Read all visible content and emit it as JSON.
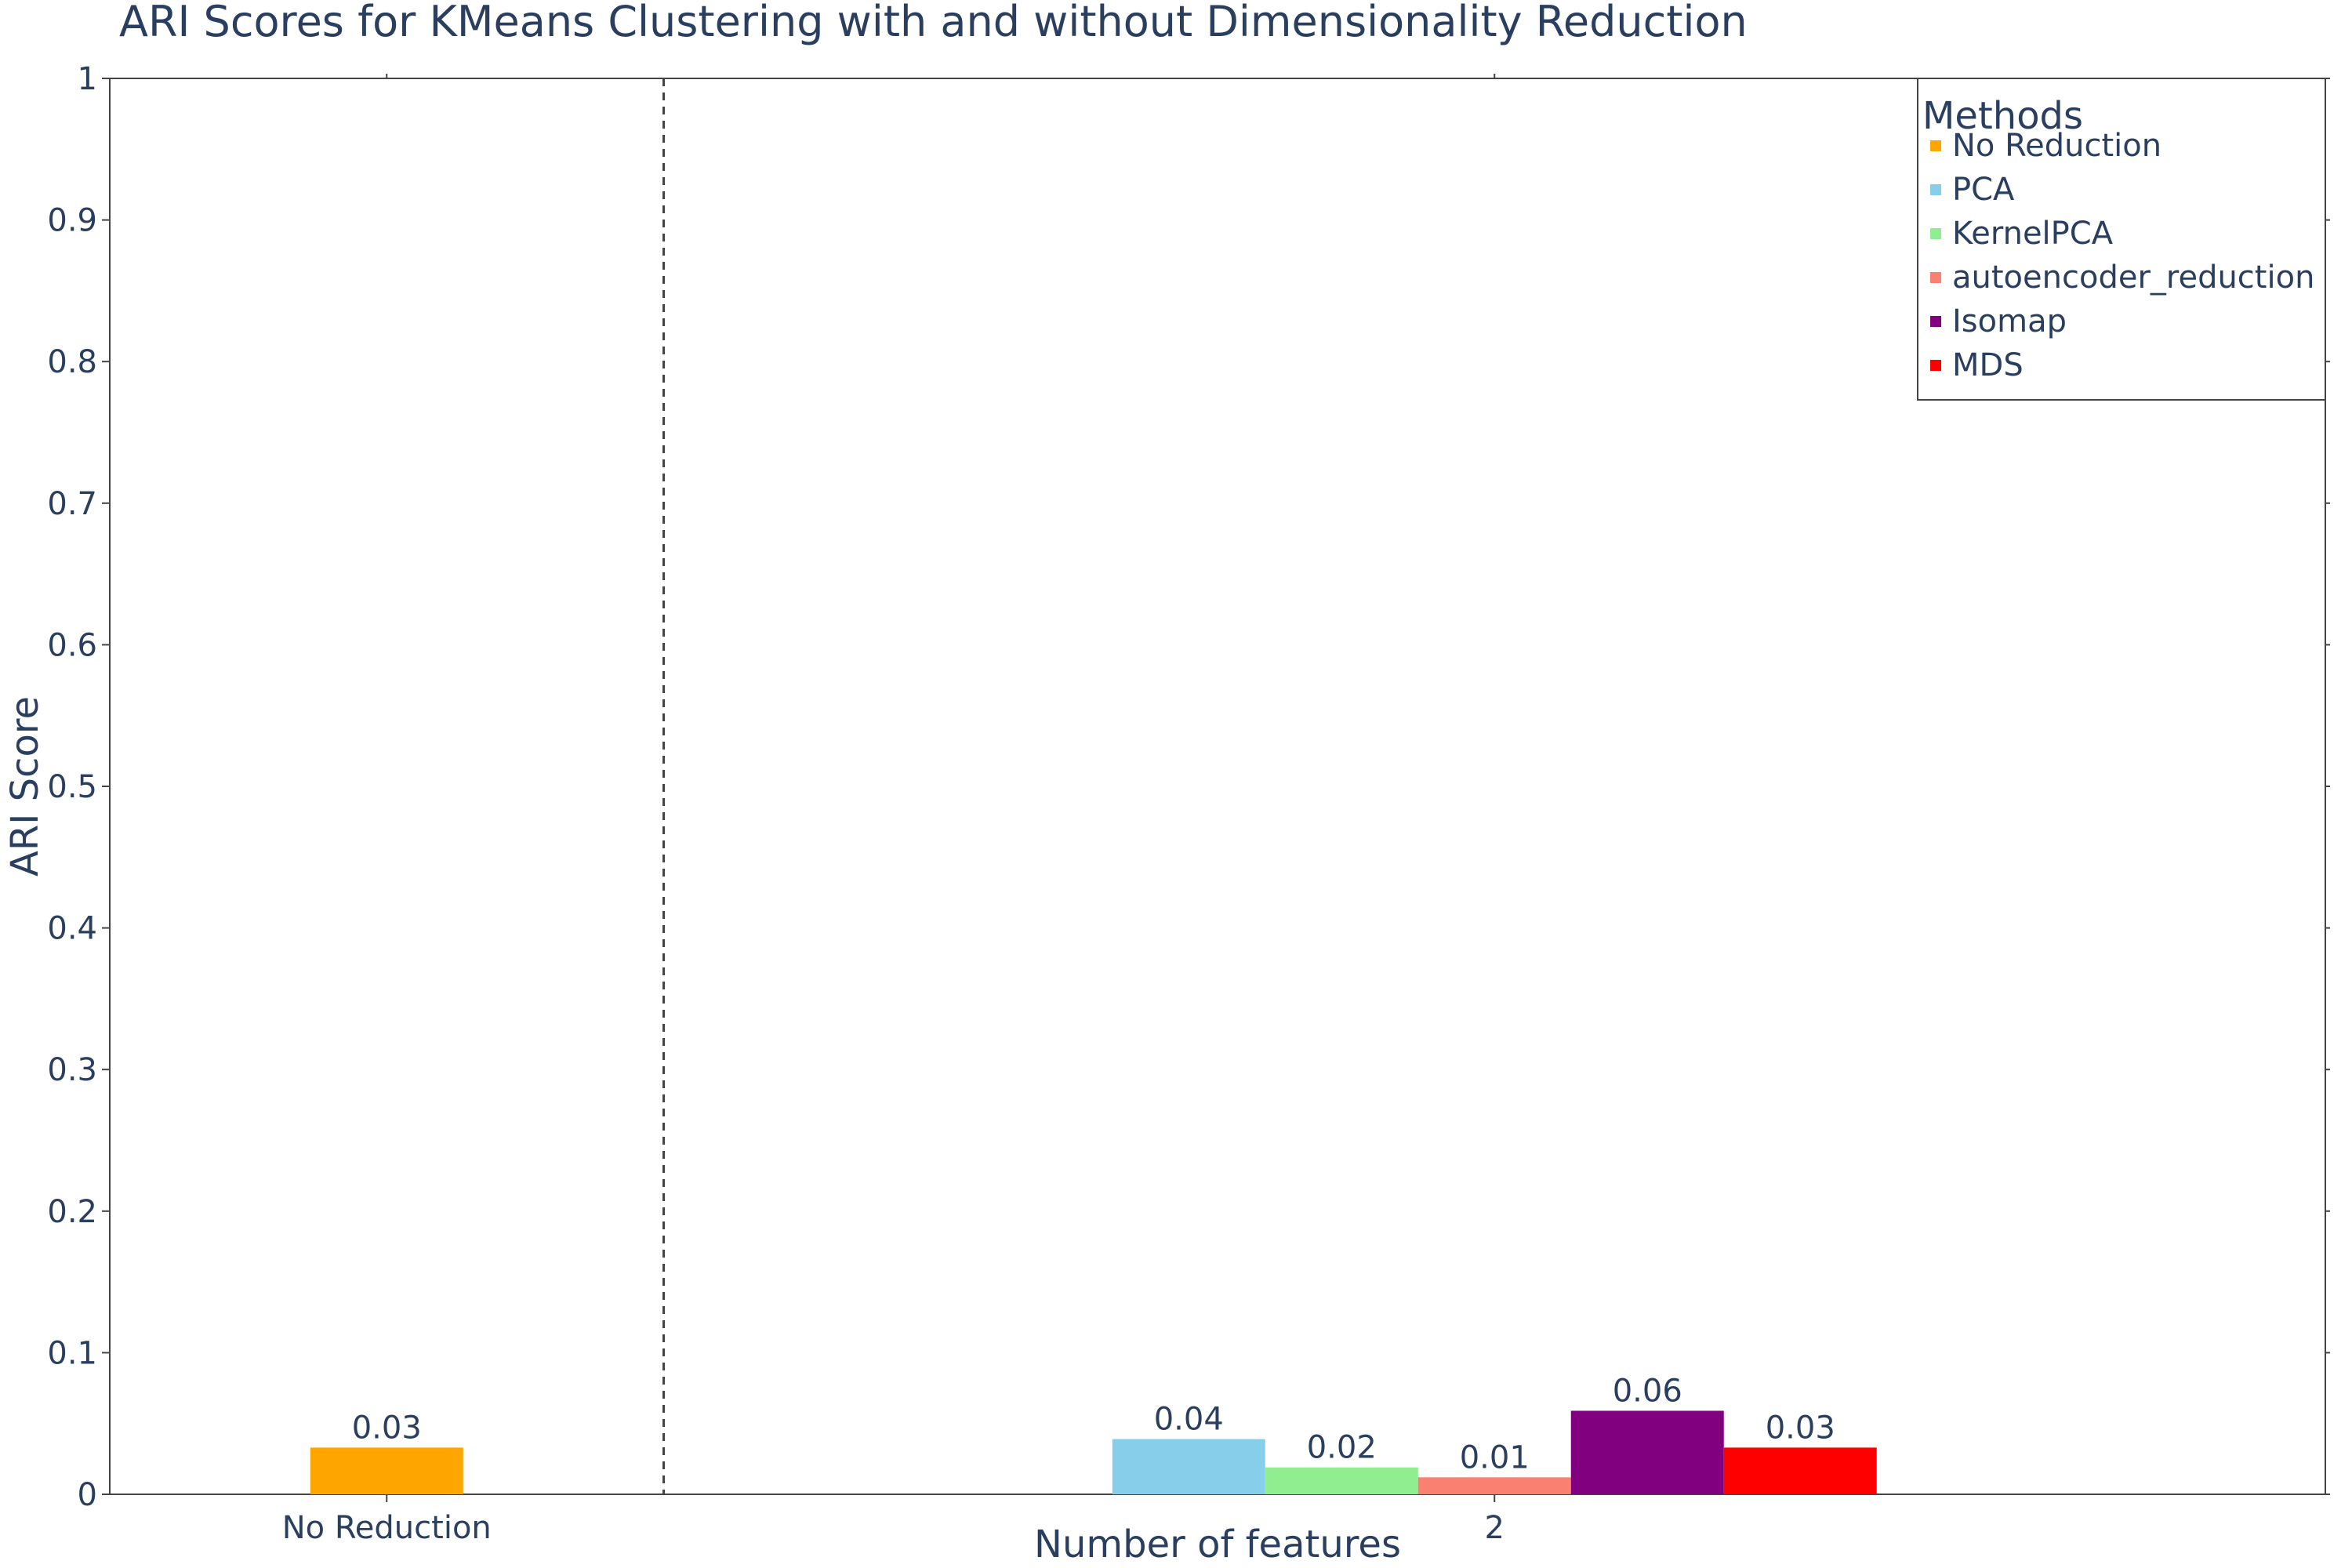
{
  "chart_data": {
    "type": "bar",
    "title": "ARI Scores for KMeans Clustering with and without Dimensionality Reduction",
    "xlabel": "Number of features",
    "ylabel": "ARI Score",
    "ylim": [
      0,
      1
    ],
    "yticks": [
      "0",
      "0.1",
      "0.2",
      "0.3",
      "0.4",
      "0.5",
      "0.6",
      "0.7",
      "0.8",
      "0.9",
      "1"
    ],
    "categories": [
      "No Reduction",
      "2"
    ],
    "legend_title": "Methods",
    "legend_position": "top-right",
    "grid": false,
    "separator_line": "dashed",
    "series": [
      {
        "name": "No Reduction",
        "color": "#FFA500",
        "category": "No Reduction",
        "value": 0.033,
        "label": "0.03"
      },
      {
        "name": "PCA",
        "color": "#87CEEB",
        "category": "2",
        "value": 0.039,
        "label": "0.04"
      },
      {
        "name": "KernelPCA",
        "color": "#90EE90",
        "category": "2",
        "value": 0.019,
        "label": "0.02"
      },
      {
        "name": "autoencoder_reduction",
        "color": "#FA8072",
        "category": "2",
        "value": 0.012,
        "label": "0.01"
      },
      {
        "name": "Isomap",
        "color": "#800080",
        "category": "2",
        "value": 0.059,
        "label": "0.06"
      },
      {
        "name": "MDS",
        "color": "#FF0000",
        "category": "2",
        "value": 0.033,
        "label": "0.03"
      }
    ]
  }
}
